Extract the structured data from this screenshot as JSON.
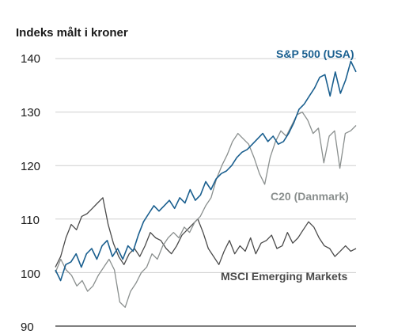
{
  "chart_data": {
    "type": "line",
    "ylabel": "Indeks målt i kroner",
    "ylim": [
      90,
      140
    ],
    "yticks": [
      140,
      130,
      120,
      110,
      100,
      90
    ],
    "grid": "horizontal",
    "series": [
      {
        "name": "S&P 500 (USA)",
        "color": "#1a5f8f",
        "values": [
          100.5,
          98.5,
          101.5,
          102.0,
          103.5,
          101.0,
          103.5,
          104.5,
          102.5,
          105.0,
          106.0,
          103.0,
          104.5,
          102.5,
          105.0,
          104.0,
          107.0,
          109.5,
          111.0,
          112.5,
          111.5,
          112.5,
          113.5,
          112.0,
          114.0,
          113.0,
          115.5,
          113.5,
          114.5,
          117.0,
          115.5,
          117.5,
          118.5,
          119.0,
          120.0,
          121.5,
          122.5,
          123.0,
          124.0,
          125.0,
          126.0,
          124.5,
          125.5,
          124.0,
          124.5,
          126.0,
          128.0,
          130.5,
          131.5,
          133.0,
          134.5,
          136.5,
          137.0,
          133.0,
          137.5,
          133.5,
          136.0,
          139.5,
          137.5
        ]
      },
      {
        "name": "C20 (Danmark)",
        "color": "#8a8f8e",
        "values": [
          100.0,
          102.5,
          100.5,
          99.5,
          97.5,
          98.5,
          96.5,
          97.5,
          99.5,
          101.0,
          102.5,
          100.5,
          94.5,
          93.5,
          96.5,
          98.0,
          100.0,
          101.0,
          103.5,
          102.5,
          105.0,
          106.5,
          107.5,
          106.5,
          108.5,
          107.5,
          109.5,
          110.5,
          112.5,
          114.0,
          117.5,
          120.0,
          122.0,
          124.5,
          126.0,
          125.0,
          124.0,
          121.5,
          118.5,
          116.5,
          121.5,
          124.5,
          126.5,
          125.5,
          127.5,
          129.5,
          130.0,
          128.5,
          126.0,
          127.0,
          120.5,
          125.5,
          126.5,
          119.5,
          126.0,
          126.5,
          127.5
        ]
      },
      {
        "name": "MSCI Emerging Markets",
        "color": "#4a4a4a",
        "values": [
          101.0,
          103.0,
          106.5,
          109.0,
          108.0,
          110.5,
          111.0,
          112.0,
          113.0,
          114.0,
          109.0,
          105.5,
          103.0,
          101.5,
          103.5,
          104.5,
          103.0,
          105.0,
          107.5,
          106.5,
          106.0,
          104.5,
          103.5,
          105.0,
          107.0,
          108.0,
          109.0,
          110.0,
          107.5,
          104.5,
          103.0,
          101.5,
          104.0,
          106.0,
          103.5,
          105.0,
          104.0,
          106.5,
          103.5,
          105.5,
          106.0,
          107.0,
          104.5,
          105.0,
          107.5,
          105.5,
          106.5,
          108.0,
          109.5,
          108.5,
          106.5,
          105.0,
          104.5,
          103.0,
          104.0,
          105.0,
          104.0,
          104.5
        ]
      }
    ]
  }
}
